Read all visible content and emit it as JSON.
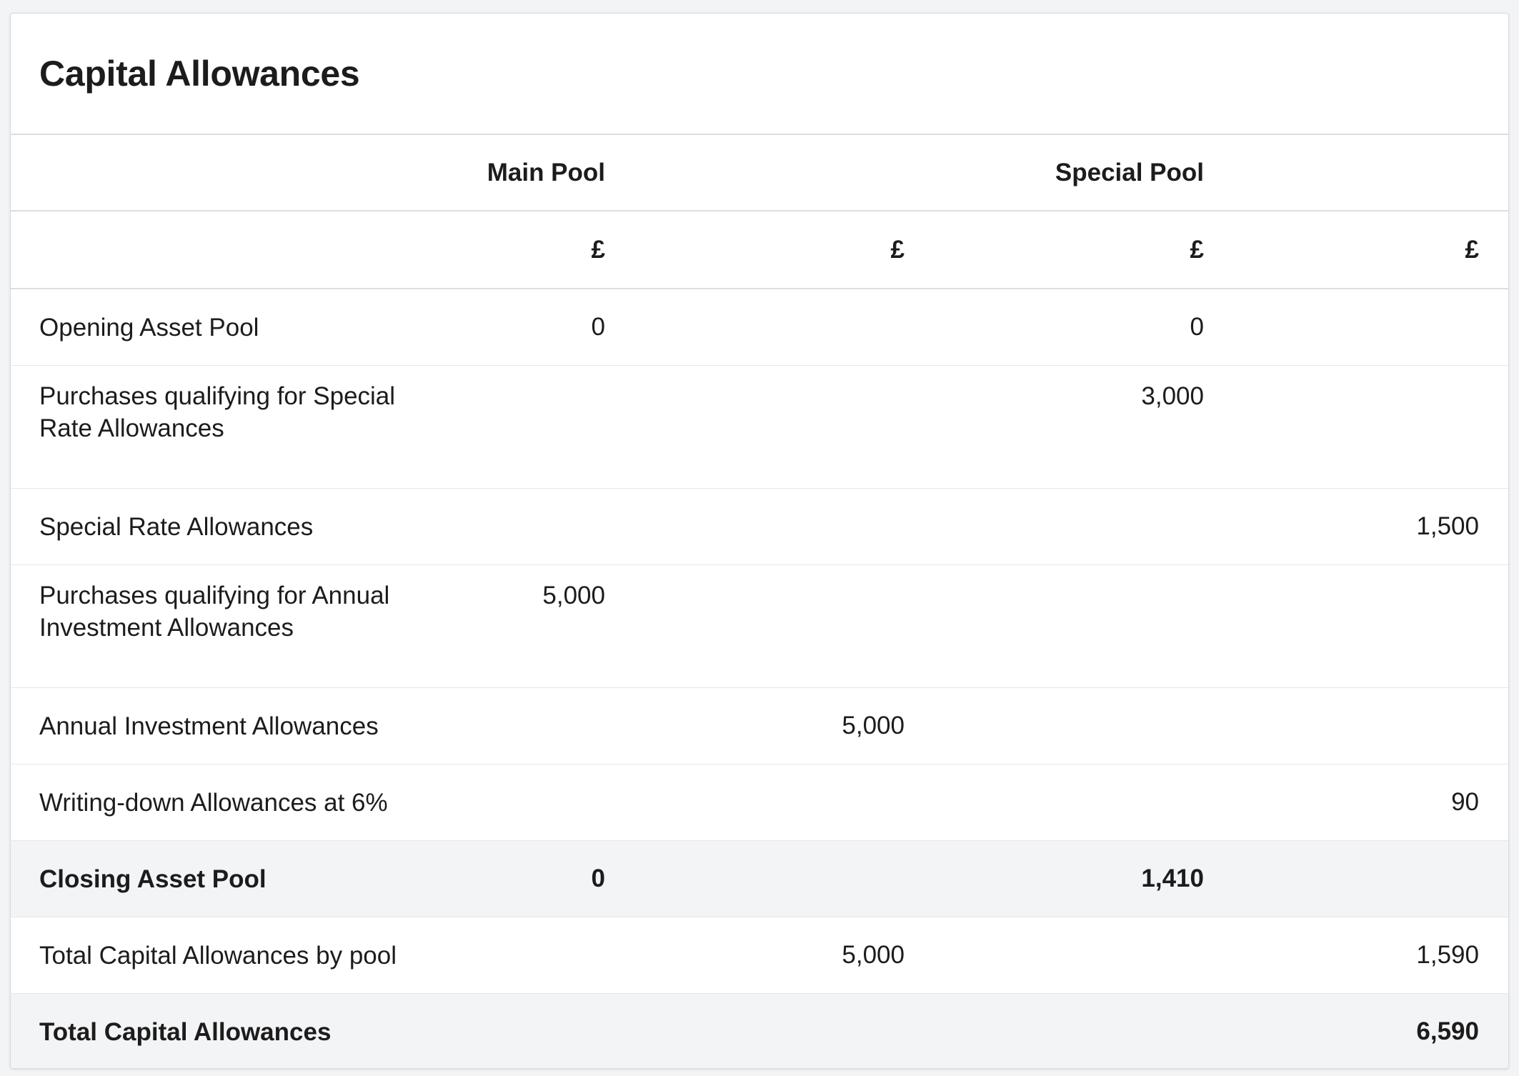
{
  "title": "Capital Allowances",
  "header": {
    "main_pool": "Main Pool",
    "special_pool": "Special Pool"
  },
  "currency": [
    "£",
    "£",
    "£",
    "£"
  ],
  "rows": [
    {
      "label": "Opening Asset Pool",
      "v1": "0",
      "v2": "",
      "v3": "0",
      "v4": ""
    },
    {
      "label": "Purchases qualifying for Special Rate Allowances",
      "v1": "",
      "v2": "",
      "v3": "3,000",
      "v4": ""
    },
    {
      "label": "Special Rate Allowances",
      "v1": "",
      "v2": "",
      "v3": "",
      "v4": "1,500"
    },
    {
      "label": "Purchases qualifying for Annual Investment Allowances",
      "v1": "5,000",
      "v2": "",
      "v3": "",
      "v4": ""
    },
    {
      "label": "Annual Investment Allowances",
      "v1": "",
      "v2": "5,000",
      "v3": "",
      "v4": ""
    },
    {
      "label": "Writing-down Allowances at 6%",
      "v1": "",
      "v2": "",
      "v3": "",
      "v4": "90"
    },
    {
      "label": "Closing Asset Pool",
      "v1": "0",
      "v2": "",
      "v3": "1,410",
      "v4": ""
    },
    {
      "label": "Total Capital Allowances by pool",
      "v1": "",
      "v2": "5,000",
      "v3": "",
      "v4": "1,590"
    },
    {
      "label": "Total Capital Allowances",
      "v1": "",
      "v2": "",
      "v3": "",
      "v4": "6,590"
    }
  ]
}
